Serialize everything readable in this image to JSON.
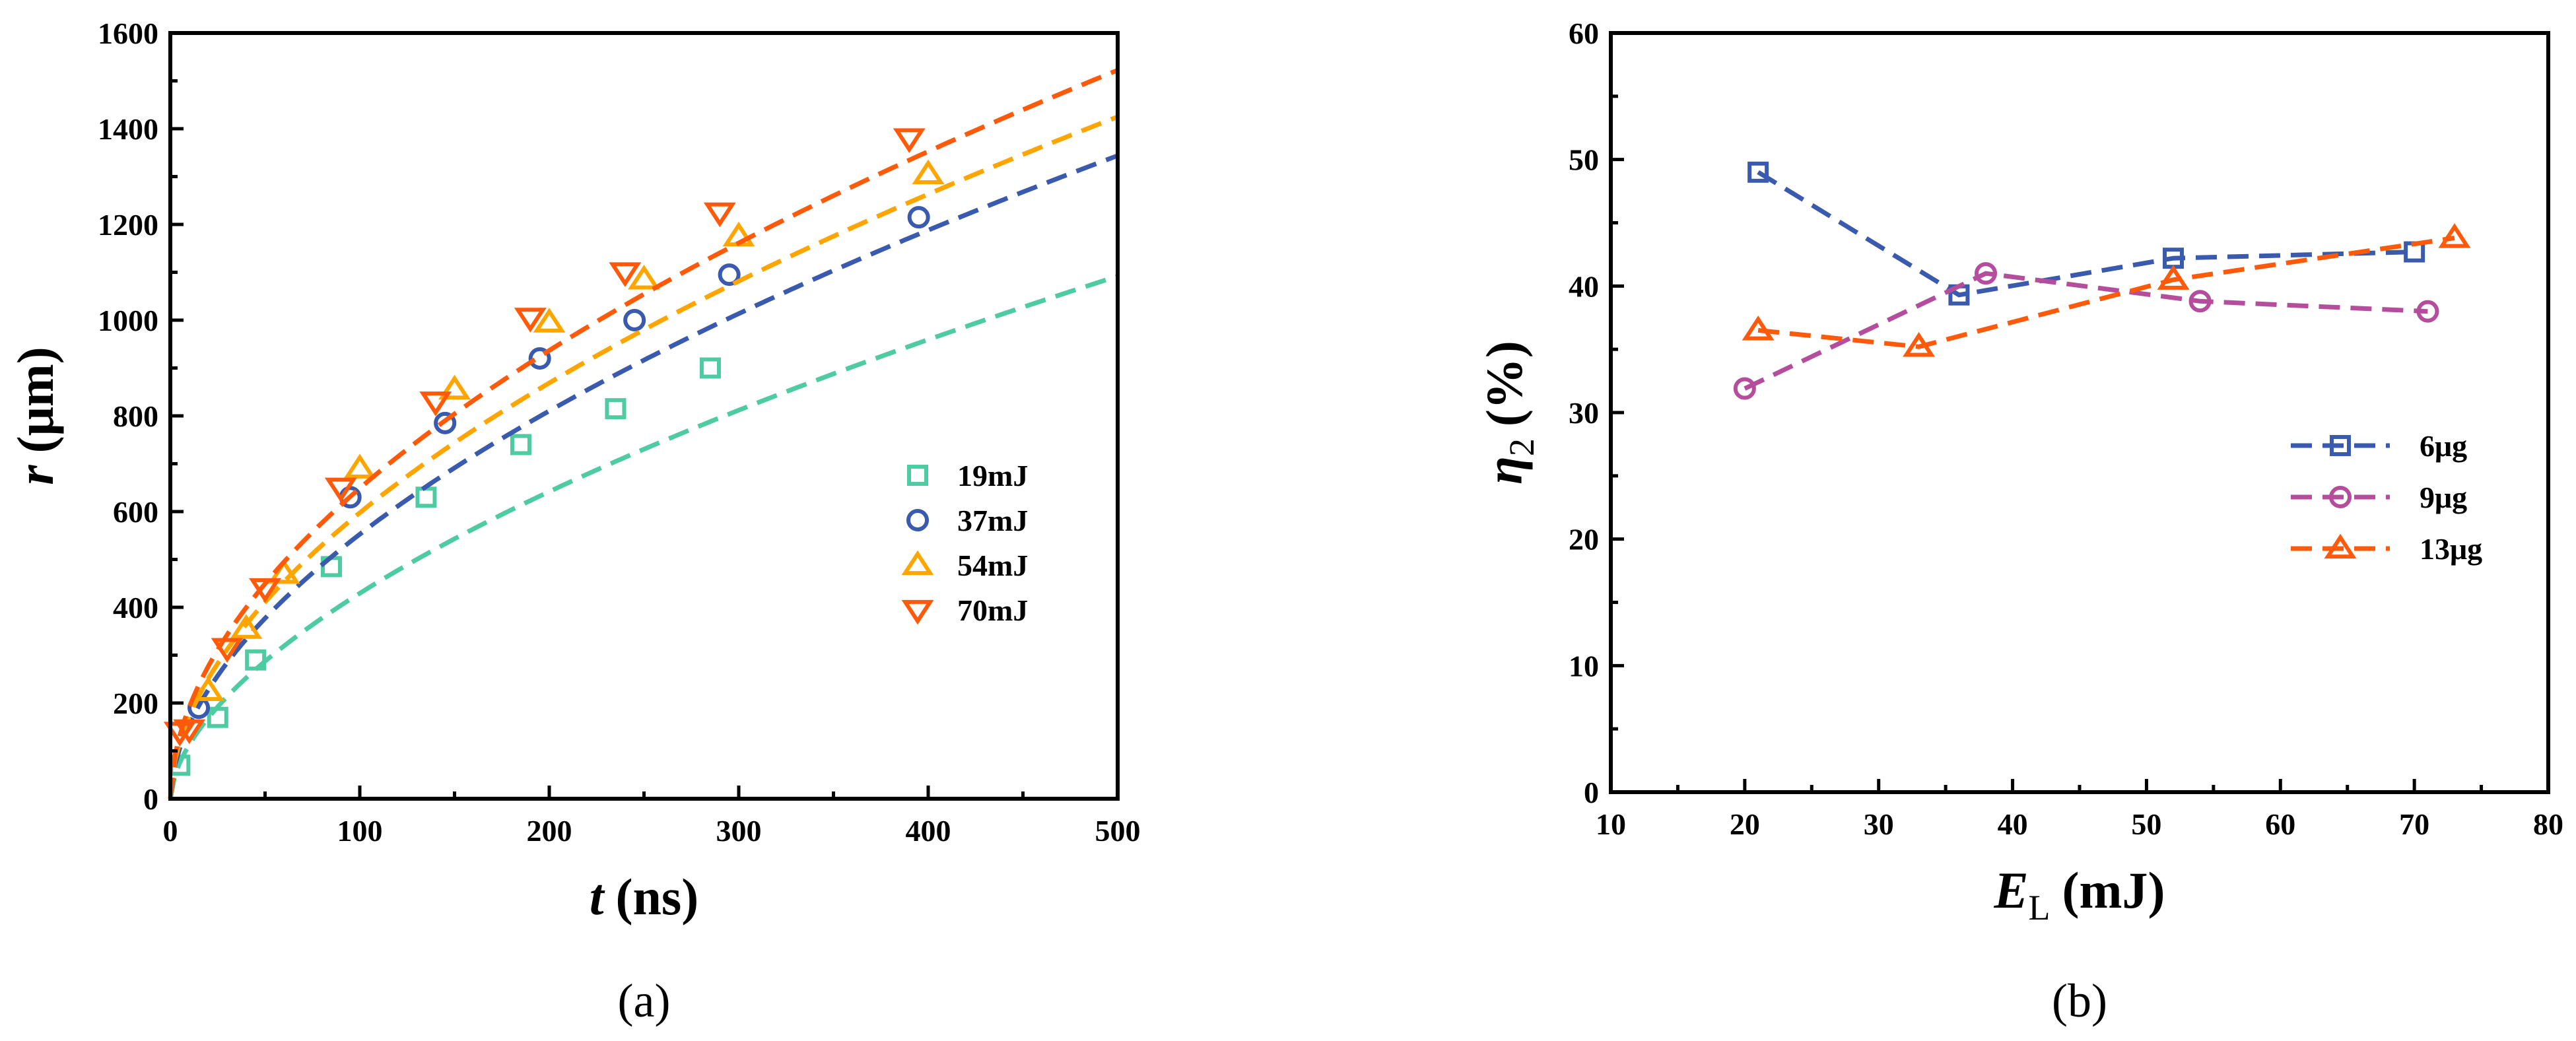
{
  "chart_data": [
    {
      "type": "scatter",
      "panel_label": "(a)",
      "xlabel_var": "t",
      "xlabel_unit": "(ns)",
      "ylabel_var": "r",
      "ylabel_unit": "(μm)",
      "xlim": [
        0,
        500
      ],
      "ylim": [
        0,
        1600
      ],
      "xticks": [
        0,
        100,
        200,
        300,
        400,
        500
      ],
      "yticks": [
        0,
        200,
        400,
        600,
        800,
        1000,
        1200,
        1400,
        1600
      ],
      "grid": false,
      "legend_position": "center-right",
      "series": [
        {
          "name": "19mJ",
          "marker": "square",
          "color": "#4ECBA0",
          "x": [
            5,
            25,
            45,
            85,
            135,
            185,
            235,
            285
          ],
          "y": [
            70,
            170,
            290,
            485,
            630,
            740,
            815,
            900
          ],
          "fit": {
            "model": "power",
            "a": 29.7,
            "b": 0.58
          }
        },
        {
          "name": "37mJ",
          "marker": "circle",
          "color": "#3A5AAE",
          "x": [
            15,
            95,
            145,
            195,
            245,
            295,
            395
          ],
          "y": [
            190,
            630,
            785,
            920,
            1000,
            1095,
            1215
          ],
          "fit": {
            "model": "power",
            "a": 43.5,
            "b": 0.552
          }
        },
        {
          "name": "54mJ",
          "marker": "triangle-up",
          "color": "#FFA500",
          "x": [
            20,
            40,
            60,
            100,
            150,
            200,
            250,
            300,
            400
          ],
          "y": [
            225,
            355,
            470,
            690,
            855,
            995,
            1085,
            1175,
            1305
          ],
          "fit": {
            "model": "power",
            "a": 49.7,
            "b": 0.54
          }
        },
        {
          "name": "70mJ",
          "marker": "triangle-down",
          "color": "#FF5A0A",
          "x": [
            5,
            10,
            30,
            50,
            90,
            140,
            190,
            240,
            290,
            390
          ],
          "y": [
            140,
            145,
            315,
            440,
            650,
            830,
            1005,
            1100,
            1225,
            1380
          ],
          "fit": {
            "model": "power",
            "a": 56.5,
            "b": 0.53
          }
        }
      ]
    },
    {
      "type": "line",
      "panel_label": "(b)",
      "xlabel_var": "E",
      "xlabel_sub": "L",
      "xlabel_unit": "(mJ)",
      "ylabel_var": "η",
      "ylabel_sub": "2",
      "ylabel_unit": "(%)",
      "xlim": [
        10,
        80
      ],
      "ylim": [
        0,
        60
      ],
      "xticks": [
        10,
        20,
        30,
        40,
        50,
        60,
        70,
        80
      ],
      "yticks": [
        0,
        10,
        20,
        30,
        40,
        50,
        60
      ],
      "grid": false,
      "legend_position": "center-right",
      "series": [
        {
          "name": "6μg",
          "marker": "square",
          "color": "#3A5AAE",
          "x": [
            21,
            36,
            52,
            70
          ],
          "y": [
            49,
            39.3,
            42.2,
            42.7
          ]
        },
        {
          "name": "9μg",
          "marker": "circle",
          "color": "#B44E9C",
          "x": [
            20,
            38,
            54,
            71
          ],
          "y": [
            31.9,
            41,
            38.8,
            38
          ]
        },
        {
          "name": "13μg",
          "marker": "triangle-up",
          "color": "#FF5A0A",
          "x": [
            21,
            33,
            52,
            73
          ],
          "y": [
            36.5,
            35.2,
            40.5,
            43.8
          ]
        }
      ]
    }
  ]
}
